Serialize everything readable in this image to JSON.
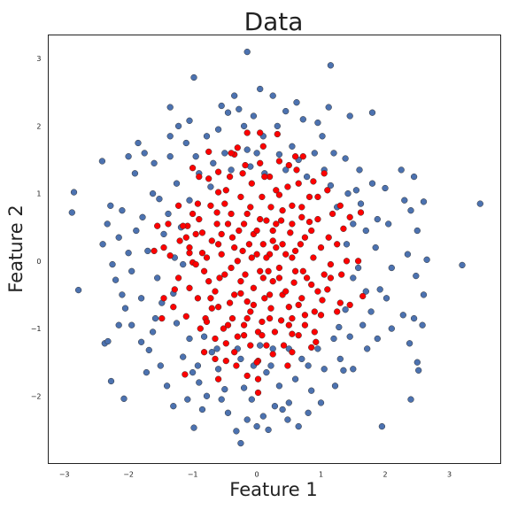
{
  "chart_data": {
    "type": "scatter",
    "title": "Data",
    "xlabel": "Feature 1",
    "ylabel": "Feature 2",
    "xlim": [
      -3.25,
      3.8
    ],
    "ylim": [
      -3.0,
      3.35
    ],
    "xticks": [
      -3,
      -2,
      -1,
      0,
      1,
      2,
      3
    ],
    "yticks": [
      -2,
      -1,
      0,
      1,
      2,
      3
    ],
    "grid": false,
    "legend": "none",
    "colors": {
      "outer": "#4c72b0",
      "inner": "#ff0000",
      "edge": "#333333"
    },
    "outer_points": [
      [
        -2.85,
        1.02
      ],
      [
        -2.88,
        0.72
      ],
      [
        -2.78,
        -0.43
      ],
      [
        -2.37,
        -1.22
      ],
      [
        -2.32,
        -1.19
      ],
      [
        -2.27,
        -1.78
      ],
      [
        -2.07,
        -2.04
      ],
      [
        -2.41,
        1.48
      ],
      [
        -2.28,
        0.82
      ],
      [
        -2.33,
        0.55
      ],
      [
        -2.15,
        0.35
      ],
      [
        -2.0,
        0.12
      ],
      [
        -2.2,
        -0.28
      ],
      [
        -2.1,
        -0.5
      ],
      [
        -2.05,
        -0.7
      ],
      [
        -1.95,
        -0.95
      ],
      [
        -1.8,
        -1.2
      ],
      [
        -1.9,
        1.3
      ],
      [
        -1.75,
        1.6
      ],
      [
        -1.6,
        1.45
      ],
      [
        -1.62,
        1.0
      ],
      [
        -1.78,
        0.65
      ],
      [
        -1.45,
        0.4
      ],
      [
        -1.7,
        0.15
      ],
      [
        -1.55,
        -0.25
      ],
      [
        -1.8,
        -0.55
      ],
      [
        -1.58,
        -0.85
      ],
      [
        -1.68,
        -1.32
      ],
      [
        -1.5,
        -1.55
      ],
      [
        -1.4,
        -1.85
      ],
      [
        -1.35,
        2.28
      ],
      [
        -1.22,
        2.0
      ],
      [
        -1.1,
        1.75
      ],
      [
        -1.35,
        1.55
      ],
      [
        -1.25,
        1.15
      ],
      [
        -1.05,
        0.9
      ],
      [
        -1.38,
        0.7
      ],
      [
        -1.15,
        -0.05
      ],
      [
        -1.3,
        -0.48
      ],
      [
        -1.25,
        -0.92
      ],
      [
        -1.05,
        -1.15
      ],
      [
        -1.15,
        -1.42
      ],
      [
        -1.0,
        -1.65
      ],
      [
        -1.3,
        -2.15
      ],
      [
        -1.08,
        -2.05
      ],
      [
        -0.98,
        2.72
      ],
      [
        -0.95,
        1.55
      ],
      [
        -0.78,
        1.85
      ],
      [
        -0.9,
        1.3
      ],
      [
        -0.72,
        1.1
      ],
      [
        -0.9,
        -1.8
      ],
      [
        -0.85,
        -2.2
      ],
      [
        -0.98,
        -2.47
      ],
      [
        -0.7,
        -1.35
      ],
      [
        -0.78,
        -2.0
      ],
      [
        -0.55,
        2.3
      ],
      [
        -0.45,
        2.2
      ],
      [
        -0.6,
        1.95
      ],
      [
        -0.5,
        1.6
      ],
      [
        -0.6,
        -1.6
      ],
      [
        -0.5,
        -1.9
      ],
      [
        -0.45,
        -2.25
      ],
      [
        -0.32,
        -2.52
      ],
      [
        -0.35,
        2.45
      ],
      [
        -0.2,
        2.0
      ],
      [
        -0.15,
        1.65
      ],
      [
        -0.25,
        -1.45
      ],
      [
        -0.2,
        -1.88
      ],
      [
        -0.15,
        -2.35
      ],
      [
        -0.25,
        -2.7
      ],
      [
        -0.05,
        2.15
      ],
      [
        -0.1,
        1.4
      ],
      [
        -0.05,
        -1.55
      ],
      [
        -0.08,
        -2.05
      ],
      [
        0.0,
        -2.45
      ],
      [
        0.05,
        2.55
      ],
      [
        0.1,
        1.85
      ],
      [
        0.12,
        1.3
      ],
      [
        0.05,
        -1.25
      ],
      [
        0.15,
        -1.65
      ],
      [
        0.1,
        -2.3
      ],
      [
        0.25,
        2.45
      ],
      [
        0.32,
        2.0
      ],
      [
        0.35,
        1.58
      ],
      [
        0.22,
        -1.55
      ],
      [
        0.35,
        -1.85
      ],
      [
        0.28,
        -2.15
      ],
      [
        0.4,
        -2.2
      ],
      [
        0.18,
        -2.5
      ],
      [
        -0.15,
        3.1
      ],
      [
        0.45,
        2.22
      ],
      [
        0.55,
        1.7
      ],
      [
        0.5,
        -1.3
      ],
      [
        0.6,
        -1.75
      ],
      [
        0.5,
        -2.1
      ],
      [
        0.48,
        -2.35
      ],
      [
        0.65,
        1.5
      ],
      [
        0.72,
        2.1
      ],
      [
        0.78,
        1.25
      ],
      [
        0.7,
        -1.45
      ],
      [
        0.85,
        -1.92
      ],
      [
        0.8,
        -2.25
      ],
      [
        0.95,
        2.05
      ],
      [
        0.9,
        1.6
      ],
      [
        1.02,
        1.85
      ],
      [
        0.95,
        -1.3
      ],
      [
        1.05,
        -1.6
      ],
      [
        1.0,
        -2.1
      ],
      [
        1.15,
        2.9
      ],
      [
        1.12,
        2.28
      ],
      [
        1.2,
        1.6
      ],
      [
        1.15,
        1.12
      ],
      [
        1.25,
        0.8
      ],
      [
        1.2,
        -1.15
      ],
      [
        1.3,
        -1.45
      ],
      [
        1.22,
        -1.85
      ],
      [
        1.38,
        1.52
      ],
      [
        1.42,
        1.0
      ],
      [
        1.5,
        0.55
      ],
      [
        1.4,
        0.25
      ],
      [
        1.5,
        -0.25
      ],
      [
        1.38,
        -0.72
      ],
      [
        1.45,
        -1.12
      ],
      [
        1.5,
        -1.6
      ],
      [
        1.6,
        1.35
      ],
      [
        1.62,
        0.85
      ],
      [
        1.7,
        0.45
      ],
      [
        1.58,
        -0.1
      ],
      [
        1.7,
        -0.45
      ],
      [
        1.65,
        -0.95
      ],
      [
        1.72,
        -1.3
      ],
      [
        1.8,
        2.2
      ],
      [
        1.8,
        1.15
      ],
      [
        1.88,
        0.62
      ],
      [
        1.85,
        0.2
      ],
      [
        1.92,
        -0.42
      ],
      [
        1.78,
        -0.75
      ],
      [
        1.88,
        -1.15
      ],
      [
        1.95,
        -2.45
      ],
      [
        2.0,
        1.08
      ],
      [
        2.05,
        0.55
      ],
      [
        2.1,
        -0.1
      ],
      [
        2.02,
        -0.55
      ],
      [
        2.1,
        -1.0
      ],
      [
        2.25,
        1.35
      ],
      [
        2.3,
        0.9
      ],
      [
        2.35,
        0.1
      ],
      [
        2.28,
        -0.8
      ],
      [
        2.38,
        -1.22
      ],
      [
        2.4,
        -2.05
      ],
      [
        2.45,
        1.25
      ],
      [
        2.4,
        0.75
      ],
      [
        2.5,
        0.45
      ],
      [
        2.48,
        -0.22
      ],
      [
        2.45,
        -0.85
      ],
      [
        2.5,
        -1.5
      ],
      [
        2.52,
        -1.62
      ],
      [
        2.6,
        0.88
      ],
      [
        2.6,
        -0.5
      ],
      [
        2.58,
        -0.95
      ],
      [
        2.65,
        0.02
      ],
      [
        3.2,
        -0.06
      ],
      [
        3.48,
        0.85
      ],
      [
        -2.4,
        0.25
      ],
      [
        -2.25,
        -0.05
      ],
      [
        -2.1,
        0.75
      ],
      [
        -1.88,
        0.45
      ],
      [
        -1.95,
        -0.15
      ],
      [
        -1.62,
        -1.05
      ],
      [
        -1.48,
        -0.62
      ],
      [
        -1.52,
        0.92
      ],
      [
        -1.35,
        1.85
      ],
      [
        -1.18,
        0.5
      ],
      [
        -1.28,
        0.05
      ],
      [
        -0.92,
        -1.55
      ],
      [
        -0.82,
        -1.12
      ],
      [
        -0.62,
        -1.3
      ],
      [
        -0.68,
        1.45
      ],
      [
        -0.4,
        1.35
      ],
      [
        -0.3,
        -1.3
      ],
      [
        0.25,
        -1.3
      ],
      [
        0.45,
        1.35
      ],
      [
        0.8,
        -1.55
      ],
      [
        1.05,
        1.35
      ],
      [
        1.28,
        -0.98
      ],
      [
        1.55,
        1.05
      ],
      [
        1.35,
        -1.62
      ],
      [
        -2.0,
        1.55
      ],
      [
        -1.85,
        1.75
      ],
      [
        -2.15,
        -0.95
      ],
      [
        -1.72,
        -1.65
      ],
      [
        -0.55,
        -2.05
      ],
      [
        0.65,
        -2.45
      ],
      [
        1.45,
        2.15
      ],
      [
        0.62,
        2.35
      ],
      [
        -1.05,
        2.08
      ],
      [
        -0.28,
        2.25
      ],
      [
        0.0,
        1.6
      ]
    ],
    "inner_points": [
      [
        -1.08,
        0.52
      ],
      [
        -1.15,
        0.52
      ],
      [
        -1.1,
        0.35
      ],
      [
        -0.9,
        0.62
      ],
      [
        -0.95,
        0.4
      ],
      [
        -0.85,
        0.12
      ],
      [
        -1.0,
        -0.02
      ],
      [
        -1.05,
        -0.4
      ],
      [
        -0.92,
        -0.55
      ],
      [
        -0.8,
        -0.85
      ],
      [
        -0.75,
        -0.3
      ],
      [
        -0.7,
        0.3
      ],
      [
        -0.72,
        0.82
      ],
      [
        -0.6,
        1.02
      ],
      [
        -0.62,
        0.55
      ],
      [
        -0.55,
        0.1
      ],
      [
        -0.58,
        -0.25
      ],
      [
        -0.6,
        -0.68
      ],
      [
        -0.52,
        -1.0
      ],
      [
        -0.48,
        -1.22
      ],
      [
        -0.42,
        1.25
      ],
      [
        -0.4,
        0.7
      ],
      [
        -0.38,
        0.35
      ],
      [
        -0.4,
        -0.1
      ],
      [
        -0.35,
        -0.5
      ],
      [
        -0.38,
        -0.85
      ],
      [
        -0.3,
        -1.12
      ],
      [
        -0.22,
        1.3
      ],
      [
        -0.25,
        0.95
      ],
      [
        -0.2,
        0.55
      ],
      [
        -0.22,
        0.15
      ],
      [
        -0.18,
        -0.2
      ],
      [
        -0.15,
        -0.6
      ],
      [
        -0.2,
        -0.95
      ],
      [
        -0.08,
        1.15
      ],
      [
        -0.1,
        0.8
      ],
      [
        -0.05,
        0.4
      ],
      [
        -0.08,
        0.05
      ],
      [
        -0.05,
        -0.4
      ],
      [
        -0.1,
        -0.75
      ],
      [
        0.02,
        -1.05
      ],
      [
        0.02,
        -1.48
      ],
      [
        0.05,
        1.45
      ],
      [
        0.08,
        0.95
      ],
      [
        0.05,
        0.62
      ],
      [
        0.1,
        0.25
      ],
      [
        0.05,
        -0.15
      ],
      [
        0.12,
        -0.55
      ],
      [
        0.08,
        -0.9
      ],
      [
        0.15,
        -1.25
      ],
      [
        0.2,
        1.25
      ],
      [
        0.22,
        0.8
      ],
      [
        0.25,
        0.45
      ],
      [
        0.2,
        0.1
      ],
      [
        0.25,
        -0.3
      ],
      [
        0.22,
        -0.7
      ],
      [
        0.28,
        -1.05
      ],
      [
        0.35,
        0.98
      ],
      [
        0.38,
        0.6
      ],
      [
        0.4,
        0.25
      ],
      [
        0.35,
        -0.1
      ],
      [
        0.4,
        -0.5
      ],
      [
        0.38,
        -0.88
      ],
      [
        0.42,
        -1.25
      ],
      [
        0.5,
        1.42
      ],
      [
        0.55,
        0.82
      ],
      [
        0.52,
        0.42
      ],
      [
        0.55,
        0.05
      ],
      [
        0.58,
        -0.32
      ],
      [
        0.5,
        -0.68
      ],
      [
        0.55,
        -1.08
      ],
      [
        0.65,
        1.15
      ],
      [
        0.7,
        0.65
      ],
      [
        0.68,
        0.25
      ],
      [
        0.72,
        -0.15
      ],
      [
        0.7,
        -0.55
      ],
      [
        0.75,
        -0.95
      ],
      [
        0.82,
        0.95
      ],
      [
        0.85,
        0.45
      ],
      [
        0.88,
        0.05
      ],
      [
        0.85,
        -0.35
      ],
      [
        0.9,
        -0.75
      ],
      [
        0.95,
        0.62
      ],
      [
        1.0,
        0.2
      ],
      [
        1.05,
        -0.2
      ],
      [
        1.02,
        -0.58
      ],
      [
        1.12,
        0.35
      ],
      [
        1.15,
        -0.05
      ],
      [
        1.1,
        -0.42
      ],
      [
        1.25,
        0.25
      ],
      [
        1.32,
        -0.2
      ],
      [
        1.45,
        0.65
      ],
      [
        1.62,
        0.72
      ],
      [
        1.65,
        -0.52
      ],
      [
        1.45,
        -0.65
      ],
      [
        1.3,
        -0.62
      ],
      [
        0.6,
        1.55
      ],
      [
        0.35,
        1.48
      ],
      [
        -0.35,
        1.58
      ],
      [
        -0.3,
        1.68
      ],
      [
        -0.6,
        1.32
      ],
      [
        -0.75,
        1.62
      ],
      [
        -1.05,
        0.12
      ],
      [
        -1.22,
        -0.25
      ],
      [
        -1.1,
        -0.82
      ],
      [
        -0.88,
        -1.0
      ],
      [
        -0.65,
        -1.15
      ],
      [
        -0.35,
        -1.35
      ],
      [
        -0.1,
        -1.25
      ],
      [
        0.0,
        -1.5
      ],
      [
        -1.12,
        -1.68
      ],
      [
        -1.55,
        0.52
      ],
      [
        -1.6,
        0.15
      ],
      [
        -1.45,
        0.2
      ],
      [
        -1.45,
        -0.55
      ],
      [
        -1.38,
        0.55
      ],
      [
        -1.05,
        0.2
      ],
      [
        -1.28,
        -0.42
      ],
      [
        -0.78,
        0.05
      ],
      [
        -0.82,
        -0.15
      ],
      [
        -0.65,
        -0.45
      ],
      [
        -0.45,
        0.55
      ],
      [
        -0.28,
        0.45
      ],
      [
        -0.12,
        0.25
      ],
      [
        0.0,
        0.1
      ],
      [
        0.15,
        0.05
      ],
      [
        0.3,
        0.2
      ],
      [
        0.45,
        0.1
      ],
      [
        0.6,
        0.15
      ],
      [
        0.75,
        0.35
      ],
      [
        -0.5,
        -0.2
      ],
      [
        -0.25,
        -0.3
      ],
      [
        0.1,
        -0.25
      ],
      [
        0.35,
        -0.25
      ],
      [
        0.6,
        -0.15
      ],
      [
        0.78,
        -0.25
      ],
      [
        -0.6,
        0.25
      ],
      [
        -0.42,
        -0.62
      ],
      [
        -0.05,
        -0.65
      ],
      [
        0.2,
        -0.5
      ],
      [
        0.45,
        -0.45
      ],
      [
        0.65,
        -0.65
      ],
      [
        -0.3,
        0.0
      ],
      [
        0.0,
        0.45
      ],
      [
        0.25,
        0.3
      ],
      [
        0.55,
        0.55
      ],
      [
        -0.5,
        0.85
      ],
      [
        -0.15,
        0.7
      ],
      [
        0.15,
        0.6
      ],
      [
        0.4,
        0.75
      ],
      [
        0.7,
        0.8
      ],
      [
        0.95,
        0.95
      ],
      [
        -0.85,
        0.42
      ],
      [
        -0.7,
        -0.7
      ],
      [
        -0.45,
        -0.95
      ],
      [
        -0.15,
        -0.85
      ],
      [
        0.2,
        -0.85
      ],
      [
        0.5,
        -0.95
      ],
      [
        0.75,
        -0.8
      ],
      [
        1.0,
        -0.8
      ],
      [
        -0.32,
        -1.55
      ],
      [
        -0.15,
        -1.7
      ],
      [
        0.02,
        -1.75
      ],
      [
        1.1,
        1.05
      ],
      [
        -0.9,
        1.25
      ],
      [
        0.9,
        -1.05
      ],
      [
        -0.65,
        -1.45
      ],
      [
        0.12,
        1.25
      ],
      [
        0.3,
        1.05
      ],
      [
        -0.55,
        0.4
      ],
      [
        -0.25,
        -0.48
      ],
      [
        0.08,
        -1.1
      ],
      [
        0.48,
        1.1
      ],
      [
        0.82,
        0.58
      ],
      [
        1.18,
        0.7
      ],
      [
        1.25,
        -0.75
      ],
      [
        0.18,
        -0.15
      ],
      [
        -0.92,
        0.85
      ],
      [
        -0.35,
        0.2
      ],
      [
        0.55,
        -0.85
      ],
      [
        0.95,
        -0.45
      ],
      [
        -0.72,
        -0.55
      ],
      [
        0.3,
        0.55
      ],
      [
        -0.2,
        -1.1
      ],
      [
        0.62,
        1.35
      ],
      [
        -0.48,
        1.05
      ],
      [
        -0.15,
        1.9
      ],
      [
        0.05,
        1.9
      ],
      [
        0.32,
        1.88
      ],
      [
        -1.0,
        1.38
      ],
      [
        -1.22,
        0.82
      ],
      [
        -0.82,
        -1.35
      ],
      [
        -1.48,
        -0.85
      ],
      [
        1.58,
        0.0
      ],
      [
        0.85,
        -1.28
      ],
      [
        0.48,
        -1.55
      ],
      [
        -0.6,
        -1.75
      ],
      [
        0.02,
        -1.95
      ],
      [
        1.05,
        1.3
      ],
      [
        1.35,
        0.48
      ],
      [
        -0.95,
        -0.05
      ],
      [
        1.15,
        -0.25
      ],
      [
        -1.35,
        0.08
      ],
      [
        -1.3,
        -0.68
      ],
      [
        0.72,
        1.55
      ],
      [
        0.55,
        -1.35
      ],
      [
        -0.75,
        1.22
      ],
      [
        -0.48,
        -1.48
      ],
      [
        0.88,
        1.18
      ],
      [
        -1.2,
        0.3
      ],
      [
        1.4,
        0.0
      ],
      [
        -0.4,
        1.6
      ],
      [
        0.25,
        -1.38
      ],
      [
        0.92,
        -1.2
      ],
      [
        -0.78,
        -0.9
      ],
      [
        0.1,
        1.7
      ],
      [
        -0.18,
        1.42
      ],
      [
        1.3,
        0.82
      ],
      [
        -1.0,
        0.7
      ],
      [
        0.65,
        -1.1
      ],
      [
        -0.62,
        0.72
      ]
    ]
  }
}
